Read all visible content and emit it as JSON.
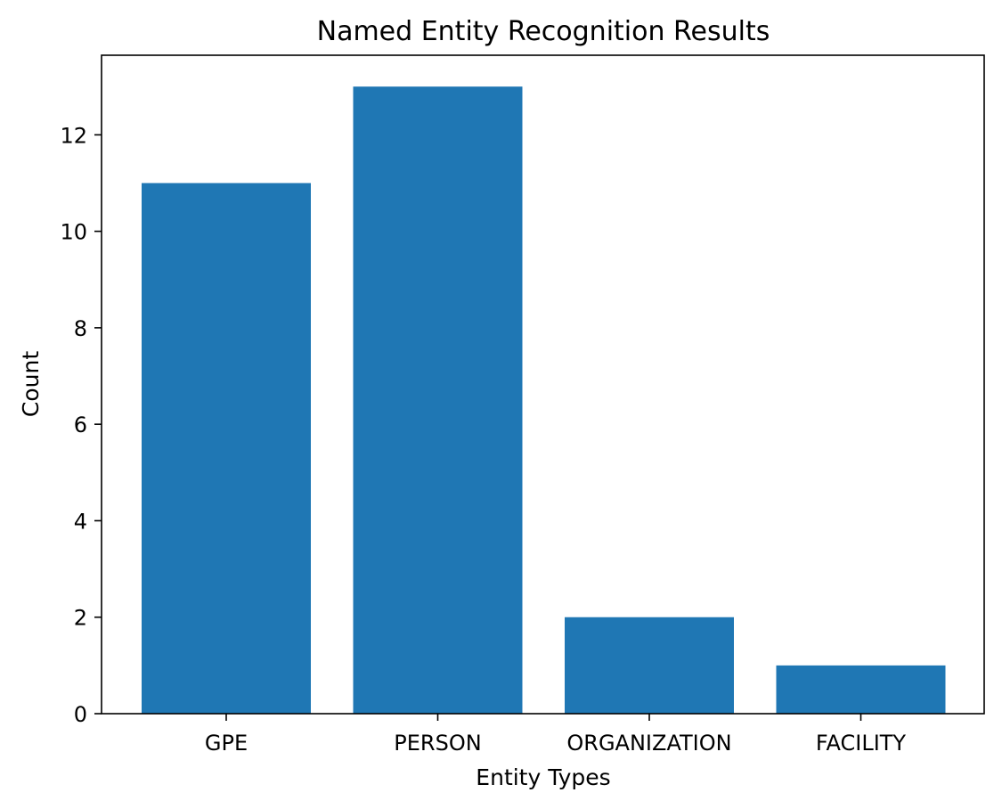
{
  "chart_data": {
    "type": "bar",
    "title": "Named Entity Recognition Results",
    "xlabel": "Entity Types",
    "ylabel": "Count",
    "categories": [
      "GPE",
      "PERSON",
      "ORGANIZATION",
      "FACILITY"
    ],
    "values": [
      11,
      13,
      2,
      1
    ],
    "ylim": [
      0,
      13.65
    ],
    "yticks": [
      0,
      2,
      4,
      6,
      8,
      10,
      12
    ],
    "bar_color": "#1f77b4",
    "grid": false,
    "legend": "none"
  }
}
